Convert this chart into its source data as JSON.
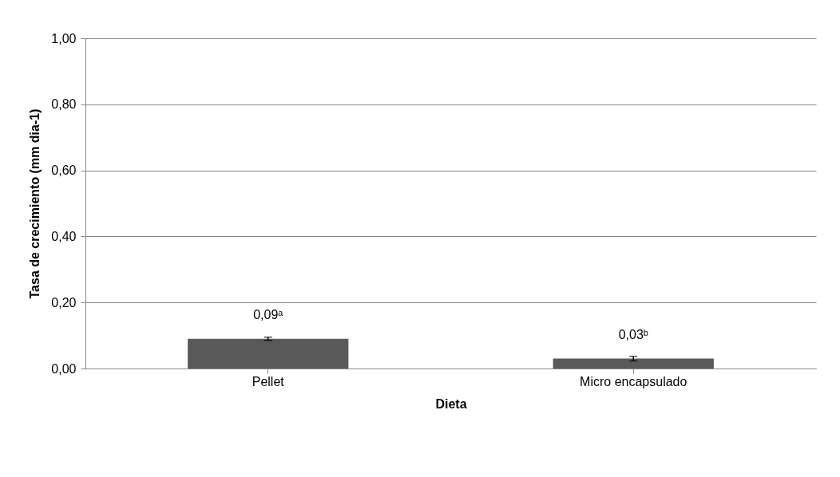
{
  "chart_data": {
    "type": "bar",
    "xlabel": "Dieta",
    "ylabel": "Tasa de crecimiento (mm dia-1)",
    "categories": [
      "Pellet",
      "Micro encapsulado"
    ],
    "values": [
      0.09,
      0.03
    ],
    "errors": [
      0.005,
      0.007
    ],
    "value_labels": [
      "0,09ᵃ",
      "0,03ᵇ"
    ],
    "color": "#595959",
    "ylim": [
      0,
      1
    ],
    "yticks": [
      {
        "value": 0,
        "label": "0,00"
      },
      {
        "value": 0.2,
        "label": "0,20"
      },
      {
        "value": 0.4,
        "label": "0,40"
      },
      {
        "value": 0.6,
        "label": "0,60"
      },
      {
        "value": 0.8,
        "label": "0,80"
      },
      {
        "value": 1,
        "label": "1,00"
      }
    ],
    "grid": "y"
  }
}
